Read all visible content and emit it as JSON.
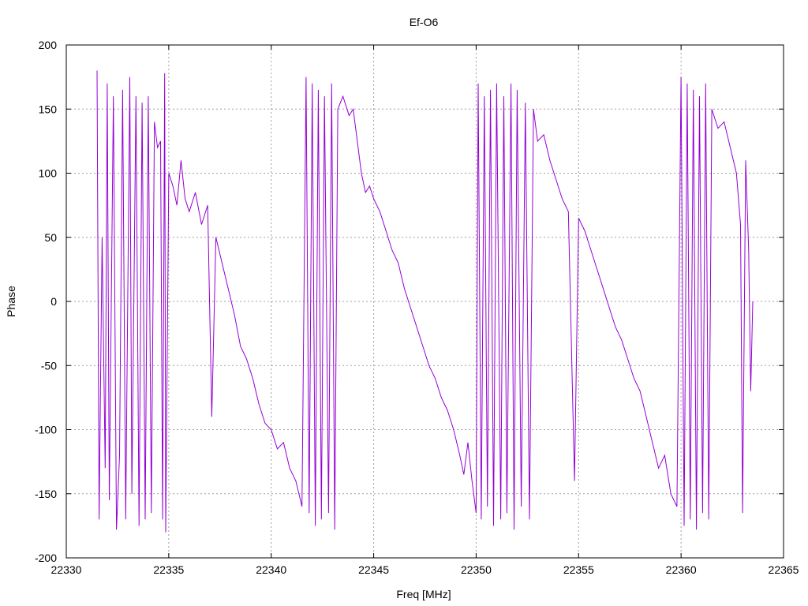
{
  "chart_data": {
    "type": "line",
    "title": "Ef-O6",
    "xlabel": "Freq [MHz]",
    "ylabel": "Phase",
    "xlim": [
      22330,
      22365
    ],
    "ylim": [
      -200,
      200
    ],
    "xticks": [
      22330,
      22335,
      22340,
      22345,
      22350,
      22355,
      22360,
      22365
    ],
    "yticks": [
      -200,
      -150,
      -100,
      -50,
      0,
      50,
      100,
      150,
      200
    ],
    "grid": true,
    "legend": "none",
    "series": [
      {
        "color": "#9400d3",
        "points": [
          [
            22331.5,
            180
          ],
          [
            22331.6,
            -170
          ],
          [
            22331.75,
            50
          ],
          [
            22331.9,
            -130
          ],
          [
            22332.0,
            170
          ],
          [
            22332.1,
            -155
          ],
          [
            22332.3,
            160
          ],
          [
            22332.45,
            -178
          ],
          [
            22332.6,
            -120
          ],
          [
            22332.75,
            165
          ],
          [
            22332.9,
            -170
          ],
          [
            22333.1,
            175
          ],
          [
            22333.2,
            -150
          ],
          [
            22333.4,
            160
          ],
          [
            22333.55,
            -175
          ],
          [
            22333.7,
            155
          ],
          [
            22333.85,
            -170
          ],
          [
            22334.0,
            160
          ],
          [
            22334.15,
            -165
          ],
          [
            22334.3,
            140
          ],
          [
            22334.45,
            120
          ],
          [
            22334.6,
            125
          ],
          [
            22334.7,
            -170
          ],
          [
            22334.8,
            178
          ],
          [
            22334.85,
            -180
          ],
          [
            22335.0,
            100
          ],
          [
            22335.2,
            90
          ],
          [
            22335.4,
            75
          ],
          [
            22335.6,
            110
          ],
          [
            22335.8,
            80
          ],
          [
            22336.0,
            70
          ],
          [
            22336.3,
            85
          ],
          [
            22336.6,
            60
          ],
          [
            22336.9,
            75
          ],
          [
            22337.1,
            -90
          ],
          [
            22337.3,
            50
          ],
          [
            22337.6,
            30
          ],
          [
            22337.9,
            10
          ],
          [
            22338.2,
            -10
          ],
          [
            22338.5,
            -35
          ],
          [
            22338.8,
            -45
          ],
          [
            22339.1,
            -60
          ],
          [
            22339.4,
            -80
          ],
          [
            22339.7,
            -95
          ],
          [
            22340.0,
            -100
          ],
          [
            22340.3,
            -115
          ],
          [
            22340.6,
            -110
          ],
          [
            22340.9,
            -130
          ],
          [
            22341.2,
            -140
          ],
          [
            22341.5,
            -160
          ],
          [
            22341.7,
            175
          ],
          [
            22341.85,
            -165
          ],
          [
            22342.0,
            170
          ],
          [
            22342.15,
            -175
          ],
          [
            22342.3,
            165
          ],
          [
            22342.45,
            -170
          ],
          [
            22342.6,
            160
          ],
          [
            22342.8,
            -165
          ],
          [
            22342.95,
            170
          ],
          [
            22343.1,
            -178
          ],
          [
            22343.25,
            150
          ],
          [
            22343.5,
            160
          ],
          [
            22343.8,
            145
          ],
          [
            22344.0,
            150
          ],
          [
            22344.2,
            125
          ],
          [
            22344.4,
            100
          ],
          [
            22344.6,
            85
          ],
          [
            22344.8,
            90
          ],
          [
            22345.0,
            80
          ],
          [
            22345.3,
            70
          ],
          [
            22345.6,
            55
          ],
          [
            22345.9,
            40
          ],
          [
            22346.2,
            30
          ],
          [
            22346.5,
            10
          ],
          [
            22346.8,
            -5
          ],
          [
            22347.1,
            -20
          ],
          [
            22347.4,
            -35
          ],
          [
            22347.7,
            -50
          ],
          [
            22348.0,
            -60
          ],
          [
            22348.3,
            -75
          ],
          [
            22348.6,
            -85
          ],
          [
            22348.9,
            -100
          ],
          [
            22349.2,
            -120
          ],
          [
            22349.4,
            -135
          ],
          [
            22349.6,
            -110
          ],
          [
            22349.8,
            -140
          ],
          [
            22350.0,
            -165
          ],
          [
            22350.1,
            170
          ],
          [
            22350.25,
            -170
          ],
          [
            22350.4,
            160
          ],
          [
            22350.55,
            -160
          ],
          [
            22350.7,
            165
          ],
          [
            22350.85,
            -175
          ],
          [
            22351.0,
            170
          ],
          [
            22351.2,
            -170
          ],
          [
            22351.35,
            160
          ],
          [
            22351.5,
            -165
          ],
          [
            22351.7,
            170
          ],
          [
            22351.85,
            -178
          ],
          [
            22352.0,
            165
          ],
          [
            22352.2,
            -160
          ],
          [
            22352.4,
            155
          ],
          [
            22352.6,
            -170
          ],
          [
            22352.8,
            150
          ],
          [
            22353.0,
            125
          ],
          [
            22353.3,
            130
          ],
          [
            22353.6,
            110
          ],
          [
            22353.9,
            95
          ],
          [
            22354.2,
            80
          ],
          [
            22354.5,
            70
          ],
          [
            22354.8,
            -140
          ],
          [
            22355.0,
            65
          ],
          [
            22355.3,
            55
          ],
          [
            22355.6,
            40
          ],
          [
            22355.9,
            25
          ],
          [
            22356.2,
            10
          ],
          [
            22356.5,
            -5
          ],
          [
            22356.8,
            -20
          ],
          [
            22357.1,
            -30
          ],
          [
            22357.4,
            -45
          ],
          [
            22357.7,
            -60
          ],
          [
            22358.0,
            -70
          ],
          [
            22358.3,
            -90
          ],
          [
            22358.6,
            -110
          ],
          [
            22358.9,
            -130
          ],
          [
            22359.2,
            -120
          ],
          [
            22359.5,
            -150
          ],
          [
            22359.8,
            -160
          ],
          [
            22360.0,
            175
          ],
          [
            22360.15,
            -175
          ],
          [
            22360.3,
            170
          ],
          [
            22360.45,
            -170
          ],
          [
            22360.6,
            165
          ],
          [
            22360.75,
            -178
          ],
          [
            22360.9,
            160
          ],
          [
            22361.05,
            -165
          ],
          [
            22361.2,
            170
          ],
          [
            22361.35,
            -170
          ],
          [
            22361.5,
            150
          ],
          [
            22361.8,
            135
          ],
          [
            22362.1,
            140
          ],
          [
            22362.4,
            120
          ],
          [
            22362.7,
            100
          ],
          [
            22362.9,
            60
          ],
          [
            22363.0,
            -165
          ],
          [
            22363.15,
            110
          ],
          [
            22363.3,
            40
          ],
          [
            22363.4,
            -70
          ],
          [
            22363.5,
            0
          ]
        ]
      }
    ]
  }
}
